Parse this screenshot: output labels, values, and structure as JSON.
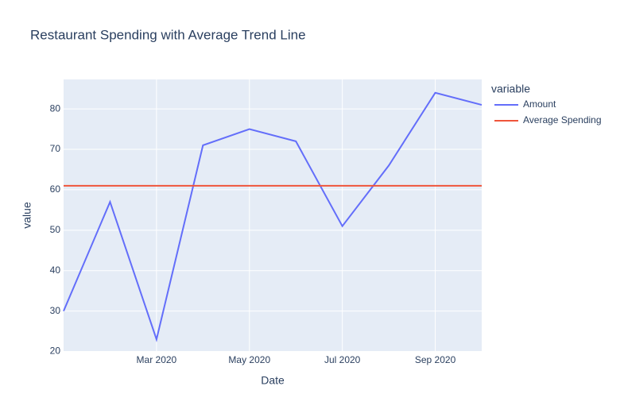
{
  "chart_data": {
    "type": "line",
    "title": "Restaurant Spending with Average Trend Line",
    "x_label": "Date",
    "y_label": "value",
    "legend_title": "variable",
    "legend_position": "right",
    "grid": true,
    "x": [
      "2020-01",
      "2020-02",
      "2020-03",
      "2020-04",
      "2020-05",
      "2020-06",
      "2020-07",
      "2020-08",
      "2020-09",
      "2020-10"
    ],
    "series": [
      {
        "name": "Amount",
        "color": "#636efa",
        "values": [
          30,
          57,
          23,
          71,
          75,
          72,
          51,
          66,
          84,
          81
        ]
      },
      {
        "name": "Average Spending",
        "color": "#ef553b",
        "values": [
          61,
          61,
          61,
          61,
          61,
          61,
          61,
          61,
          61,
          61
        ]
      }
    ],
    "xlim": [
      "2020-01",
      "2020-10"
    ],
    "xticks": [
      {
        "value": "2020-03",
        "label": "Mar 2020"
      },
      {
        "value": "2020-05",
        "label": "May 2020"
      },
      {
        "value": "2020-07",
        "label": "Jul 2020"
      },
      {
        "value": "2020-09",
        "label": "Sep 2020"
      }
    ],
    "ylim": [
      19.9,
      87.3
    ],
    "yticks": [
      20,
      30,
      40,
      50,
      60,
      70,
      80
    ]
  }
}
